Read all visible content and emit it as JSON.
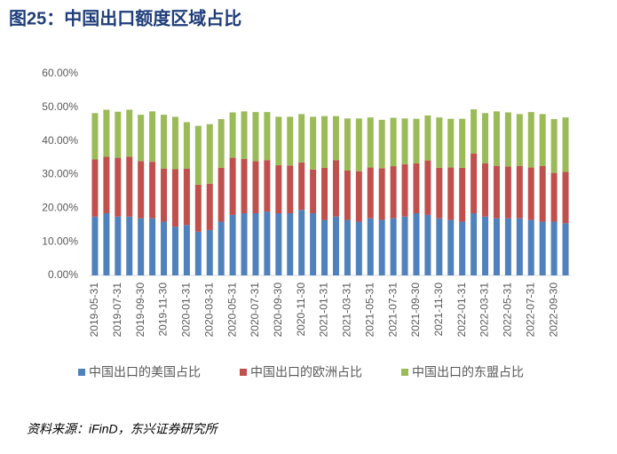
{
  "title": "图25：中国出口额度区域占比",
  "source": "资料来源：iFinD，东兴证券研究所",
  "chart_data": {
    "type": "stacked_bar",
    "categories": [
      "2019-05-31",
      null,
      "2019-07-31",
      null,
      "2019-09-30",
      null,
      "2019-11-30",
      null,
      "2020-01-31",
      null,
      "2020-03-31",
      null,
      "2020-05-31",
      null,
      "2020-07-31",
      null,
      "2020-09-30",
      null,
      "2020-11-30",
      null,
      "2021-01-31",
      null,
      "2021-03-31",
      null,
      "2021-05-31",
      null,
      "2021-07-31",
      null,
      "2021-09-30",
      null,
      "2021-11-30",
      null,
      "2022-01-31",
      null,
      "2022-03-31",
      null,
      "2022-05-31",
      null,
      "2022-07-31",
      null,
      "2022-09-30",
      null
    ],
    "series": [
      {
        "name": "中国出口的美国占比",
        "color": "#4f81bd",
        "values": [
          17.5,
          18.5,
          17.5,
          17.5,
          17,
          17,
          16,
          14.5,
          15,
          13,
          13.5,
          16,
          18,
          18.5,
          18.5,
          19,
          18.5,
          18.5,
          19.5,
          18.5,
          16.5,
          17.5,
          16.5,
          16,
          17,
          16.5,
          17,
          17.5,
          18.5,
          18,
          17,
          16.5,
          16,
          18.5,
          17.5,
          17,
          17,
          17,
          16.5,
          16,
          16,
          15.5
        ]
      },
      {
        "name": "中国出口的欧洲占比",
        "color": "#c0504d",
        "values": [
          17,
          16.8,
          17.5,
          17.8,
          17,
          16.8,
          15.8,
          17.1,
          16.8,
          14,
          13.8,
          16,
          17,
          16.2,
          15.5,
          15.3,
          14.3,
          14.2,
          14.1,
          13,
          15.5,
          16.8,
          14.7,
          15,
          15.1,
          15.4,
          15.5,
          15.6,
          14.8,
          16.2,
          15,
          15.6,
          16,
          17.8,
          15.8,
          15.6,
          15.4,
          15.6,
          15.6,
          16.6,
          14.5,
          15.3
        ]
      },
      {
        "name": "中国出口的东盟占比",
        "color": "#9bbb59",
        "values": [
          13.8,
          14,
          13.7,
          14,
          13.8,
          15,
          16,
          15.6,
          13.8,
          17.5,
          17.7,
          14.5,
          13.5,
          14.1,
          14.6,
          14.3,
          14.4,
          14.5,
          14.4,
          15.7,
          15.4,
          13.1,
          15.5,
          15.7,
          14.9,
          14.4,
          14.4,
          13.6,
          13.3,
          13.4,
          15,
          14.5,
          14.6,
          13.1,
          15,
          16.2,
          16.1,
          15.4,
          16.5,
          15.4,
          16,
          16.2
        ]
      }
    ],
    "ylim": [
      0,
      60
    ],
    "yticks": [
      {
        "value": 0,
        "label": "0.00%"
      },
      {
        "value": 10,
        "label": "10.00%"
      },
      {
        "value": 20,
        "label": "20.00%"
      },
      {
        "value": 30,
        "label": "30.00%"
      },
      {
        "value": 40,
        "label": "40.00%"
      },
      {
        "value": 50,
        "label": "50.00%"
      },
      {
        "value": 60,
        "label": "60.00%"
      }
    ],
    "legend": "bottom"
  }
}
